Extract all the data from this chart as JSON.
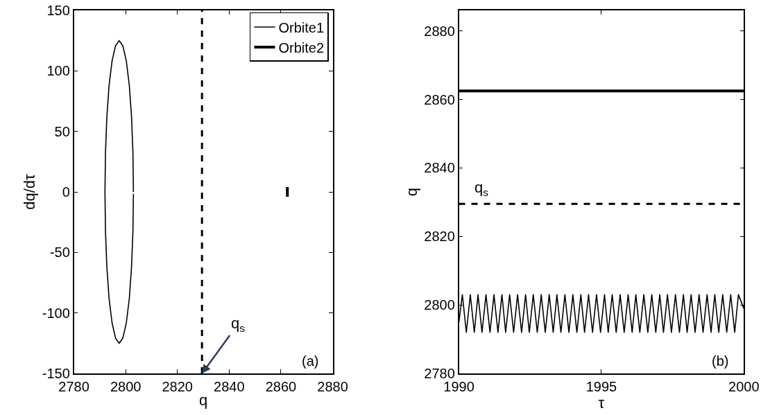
{
  "chart_data": [
    {
      "type": "line",
      "xlabel": "q",
      "ylabel": "dq/dτ",
      "xlim": [
        2780,
        2880
      ],
      "xticks": [
        2780,
        2800,
        2820,
        2840,
        2860,
        2880
      ],
      "ylim": [
        -150,
        150
      ],
      "yticks": [
        -150,
        -100,
        -50,
        0,
        50,
        100,
        150
      ],
      "grid": false,
      "legend": "top right",
      "marker": "none",
      "line_style": "solid",
      "series": [
        {
          "name": "Orbite1",
          "color": "#000000",
          "x": [
            2803,
            2802.81,
            2802.26,
            2801.39,
            2800.25,
            2798.92,
            2797.5,
            2796.08,
            2794.75,
            2793.61,
            2792.74,
            2792.19,
            2792,
            2792.19,
            2792.74,
            2793.61,
            2794.75,
            2796.08,
            2797.5,
            2798.92,
            2800.25,
            2801.39,
            2802.26,
            2802.81,
            2803
          ],
          "values": [
            0,
            32.4,
            62.5,
            88.4,
            108.3,
            120.7,
            125,
            120.7,
            108.3,
            88.4,
            62.5,
            32.4,
            0,
            -32.4,
            -62.5,
            -88.4,
            -108.3,
            -120.7,
            -125,
            -120.7,
            -108.3,
            -88.4,
            -62.5,
            -32.4,
            -1.5
          ]
        },
        {
          "name": "Orbite2",
          "color": "#000000",
          "x": [
            2862.5,
            2862.5
          ],
          "values": [
            -4,
            4
          ]
        }
      ],
      "ref_lines": [
        {
          "axis": "x",
          "value": 2829.5,
          "line_style": "dashed",
          "color": "#000000"
        }
      ],
      "annotations": [
        {
          "text": "q$_{s}$",
          "x": 2829.5,
          "y": -150
        },
        "(a)"
      ]
    },
    {
      "type": "line",
      "xlabel": "τ",
      "ylabel": "q",
      "xlim": [
        1990,
        2000
      ],
      "xticks": [
        1990,
        1995,
        2000
      ],
      "ylim": [
        2780,
        2886
      ],
      "yticks": [
        2780,
        2800,
        2820,
        2840,
        2860,
        2880
      ],
      "grid": false,
      "marker": "none",
      "line_style": "solid",
      "series": [
        {
          "color": "#000000",
          "x": [
            1990,
            1990.12,
            1990.26,
            1990.4,
            1990.54,
            1990.67,
            1990.81,
            1990.95,
            1991.09,
            1991.23,
            1991.37,
            1991.51,
            1991.64,
            1991.78,
            1991.92,
            1992.06,
            1992.2,
            1992.34,
            1992.47,
            1992.61,
            1992.75,
            1992.89,
            1993.03,
            1993.17,
            1993.31,
            1993.44,
            1993.58,
            1993.72,
            1993.86,
            1994.0,
            1994.14,
            1994.28,
            1994.41,
            1994.55,
            1994.69,
            1994.83,
            1994.97,
            1995.11,
            1995.24,
            1995.38,
            1995.52,
            1995.66,
            1995.8,
            1995.94,
            1996.08,
            1996.21,
            1996.35,
            1996.49,
            1996.63,
            1996.77,
            1996.91,
            1997.05,
            1997.18,
            1997.32,
            1997.46,
            1997.6,
            1997.74,
            1997.88,
            1998.01,
            1998.15,
            1998.29,
            1998.43,
            1998.57,
            1998.71,
            1998.85,
            1998.98,
            1999.12,
            1999.26,
            1999.4,
            1999.54,
            1999.68,
            1999.81,
            2000
          ],
          "values": [
            2795,
            2803,
            2792,
            2803,
            2792,
            2803,
            2792,
            2803,
            2792,
            2803,
            2792,
            2803,
            2792,
            2803,
            2792,
            2803,
            2792,
            2803,
            2792,
            2803,
            2792,
            2803,
            2792,
            2803,
            2792,
            2803,
            2792,
            2803,
            2792,
            2803,
            2792,
            2803,
            2792,
            2803,
            2792,
            2803,
            2792,
            2803,
            2792,
            2803,
            2792,
            2803,
            2792,
            2803,
            2792,
            2803,
            2792,
            2803,
            2792,
            2803,
            2792,
            2803,
            2792,
            2803,
            2792,
            2803,
            2792,
            2803,
            2792,
            2803,
            2792,
            2803,
            2792,
            2803,
            2792,
            2803,
            2792,
            2803,
            2792,
            2803,
            2792,
            2803,
            2799
          ]
        },
        {
          "color": "#000000",
          "x": [
            1990,
            2000
          ],
          "values": [
            2862.5,
            2862.5
          ]
        }
      ],
      "ref_lines": [
        {
          "axis": "y",
          "value": 2829.5,
          "label": "q$_{s}$",
          "line_style": "dashed",
          "color": "#000000"
        }
      ],
      "annotations": [
        "(b)"
      ]
    }
  ]
}
